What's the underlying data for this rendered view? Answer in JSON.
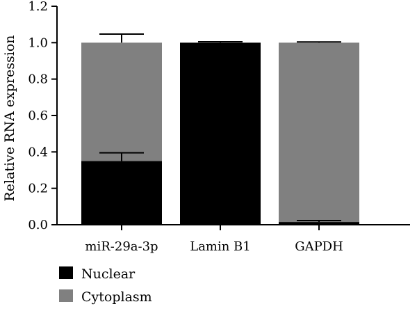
{
  "chart_data": {
    "type": "bar",
    "stacked": true,
    "categories": [
      "miR-29a-3p",
      "Lamin B1",
      "GAPDH"
    ],
    "series": [
      {
        "name": "Nuclear",
        "color": "#000000",
        "values": [
          0.35,
          1.0,
          0.015
        ],
        "errors": [
          0.045,
          0.005,
          0.008
        ]
      },
      {
        "name": "Cytoplasm",
        "color": "#808080",
        "values": [
          0.65,
          0.0,
          0.985
        ],
        "errors": [
          0.047,
          0.0,
          0.004
        ]
      }
    ],
    "ylabel": "Relative RNA expression",
    "ylim": [
      0,
      1.2
    ],
    "yticks": [
      "0.0",
      "0.2",
      "0.4",
      "0.6",
      "0.8",
      "1.0",
      "1.2"
    ],
    "grid": false,
    "legend_position": "bottom-left"
  }
}
